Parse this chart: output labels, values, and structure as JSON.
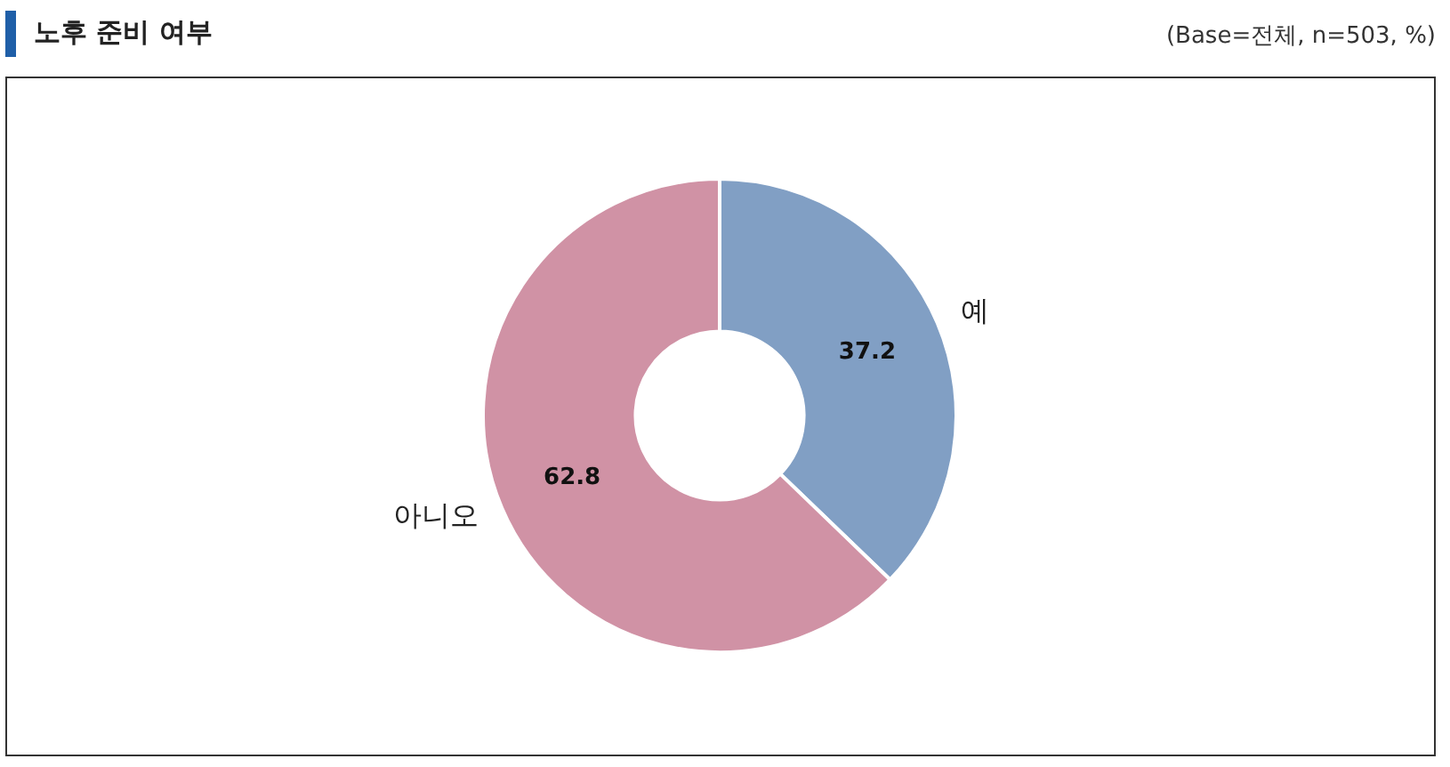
{
  "chart_data": {
    "type": "donut",
    "title": "노후 준비 여부",
    "annotations": [
      "(Base=전체, n=503, %)"
    ],
    "categories": [
      "예",
      "아니오"
    ],
    "values": [
      37.2,
      62.8
    ],
    "colors": [
      "#819fc4",
      "#d092a5"
    ],
    "data_labels": true,
    "legend": false
  }
}
